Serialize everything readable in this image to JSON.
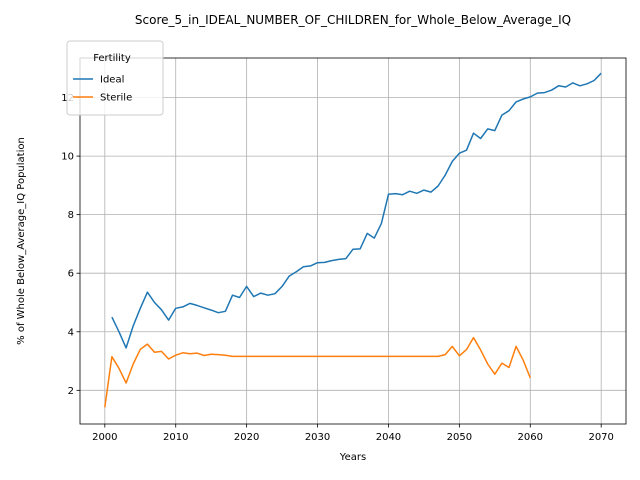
{
  "chart_data": {
    "type": "line",
    "title": "Score_5_in_IDEAL_NUMBER_OF_CHILDREN_for_Whole_Below_Average_IQ",
    "xlabel": "Years",
    "ylabel": "% of Whole Below_Average_IQ Population",
    "xlim": [
      1996.5,
      2073.5
    ],
    "ylim": [
      0.85,
      13.35
    ],
    "xticks": [
      2000,
      2010,
      2020,
      2030,
      2040,
      2050,
      2060,
      2070
    ],
    "yticks": [
      2,
      4,
      6,
      8,
      10,
      12
    ],
    "grid": true,
    "legend": {
      "title": "Fertility",
      "position": "top-left"
    },
    "series": [
      {
        "name": "Ideal",
        "color": "#1f77b4",
        "x": [
          2001,
          2002,
          2003,
          2004,
          2005,
          2006,
          2007,
          2008,
          2009,
          2010,
          2011,
          2012,
          2013,
          2014,
          2015,
          2016,
          2017,
          2018,
          2019,
          2020,
          2021,
          2022,
          2023,
          2024,
          2025,
          2026,
          2027,
          2028,
          2029,
          2030,
          2031,
          2032,
          2033,
          2034,
          2035,
          2036,
          2037,
          2038,
          2039,
          2040,
          2041,
          2042,
          2043,
          2044,
          2045,
          2046,
          2047,
          2048,
          2049,
          2050,
          2051,
          2052,
          2053,
          2054,
          2055,
          2056,
          2057,
          2058,
          2059,
          2060,
          2061,
          2062,
          2063,
          2064,
          2065,
          2066,
          2067,
          2068,
          2069,
          2070
        ],
        "y": [
          4.5,
          4.0,
          3.45,
          4.2,
          4.8,
          5.35,
          5.0,
          4.75,
          4.4,
          4.8,
          4.85,
          4.97,
          4.9,
          4.82,
          4.74,
          4.65,
          4.7,
          5.25,
          5.17,
          5.55,
          5.2,
          5.32,
          5.25,
          5.3,
          5.55,
          5.9,
          6.05,
          6.22,
          6.25,
          6.36,
          6.37,
          6.43,
          6.47,
          6.5,
          6.82,
          6.83,
          7.36,
          7.2,
          7.7,
          8.7,
          8.72,
          8.68,
          8.8,
          8.73,
          8.84,
          8.77,
          8.98,
          9.35,
          9.82,
          10.1,
          10.2,
          10.78,
          10.6,
          10.93,
          10.87,
          11.4,
          11.55,
          11.85,
          11.95,
          12.02,
          12.15,
          12.17,
          12.25,
          12.4,
          12.36,
          12.5,
          12.4,
          12.47,
          12.58,
          12.83
        ]
      },
      {
        "name": "Sterile",
        "color": "#ff7f0e",
        "x": [
          2000,
          2001,
          2002,
          2003,
          2004,
          2005,
          2006,
          2007,
          2008,
          2009,
          2010,
          2011,
          2012,
          2013,
          2014,
          2015,
          2016,
          2017,
          2018,
          2019,
          2020,
          2025,
          2030,
          2035,
          2040,
          2045,
          2047,
          2048,
          2049,
          2050,
          2051,
          2052,
          2053,
          2054,
          2055,
          2056,
          2057,
          2058,
          2059,
          2060
        ],
        "y": [
          1.42,
          3.15,
          2.75,
          2.25,
          2.9,
          3.4,
          3.58,
          3.3,
          3.33,
          3.07,
          3.2,
          3.28,
          3.25,
          3.27,
          3.19,
          3.23,
          3.22,
          3.2,
          3.16,
          3.16,
          3.16,
          3.16,
          3.16,
          3.16,
          3.16,
          3.16,
          3.16,
          3.22,
          3.5,
          3.18,
          3.39,
          3.8,
          3.38,
          2.9,
          2.55,
          2.93,
          2.78,
          3.5,
          3.03,
          2.42
        ]
      }
    ]
  }
}
